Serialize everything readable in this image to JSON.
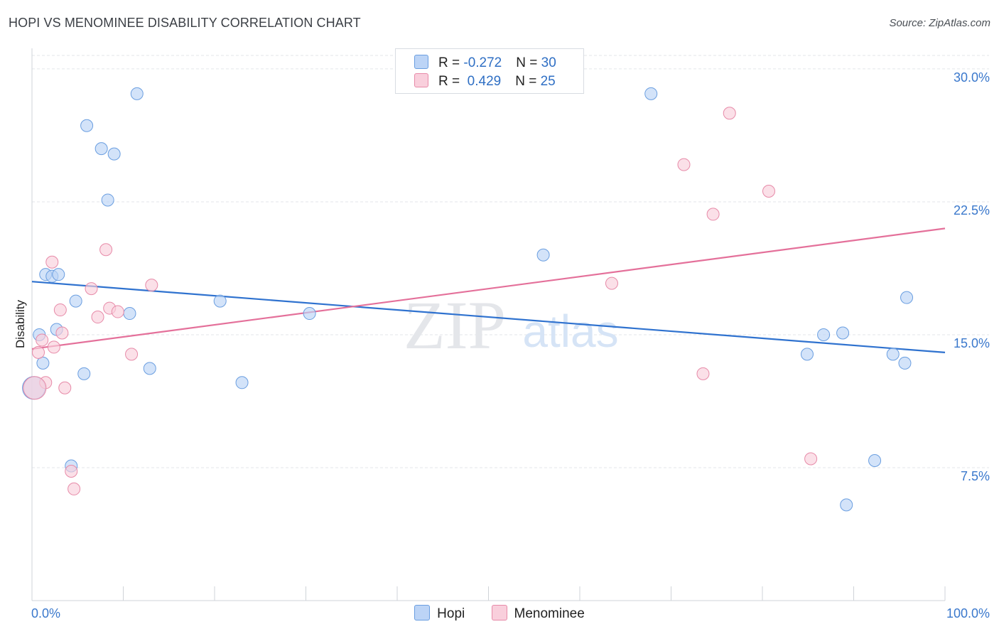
{
  "header": {
    "title": "HOPI VS MENOMINEE DISABILITY CORRELATION CHART",
    "source": "Source: ZipAtlas.com"
  },
  "legend": {
    "rows": [
      {
        "r_label": "R = ",
        "r_value": "-0.272",
        "n_label": "N = ",
        "n_value": "30"
      },
      {
        "r_label": "R = ",
        "r_value": " 0.429",
        "n_label": "N = ",
        "n_value": "25"
      }
    ],
    "bottom": [
      "Hopi",
      "Menominee"
    ]
  },
  "colors": {
    "hopi_fill": "#bcd4f6",
    "hopi_stroke": "#6a9ee0",
    "hopi_line": "#2f72cf",
    "menominee_fill": "#f9cfdc",
    "menominee_stroke": "#e78aa8",
    "menominee_line": "#e4709a",
    "tick_text": "#3a78cc",
    "grid": "#e3e6ea"
  },
  "chart_data": {
    "type": "scatter",
    "title": "HOPI VS MENOMINEE DISABILITY CORRELATION CHART",
    "xlabel": "",
    "ylabel": "Disability",
    "xlim": [
      0,
      100
    ],
    "ylim": [
      0,
      31
    ],
    "x_tick_labels": [
      "0.0%",
      "100.0%"
    ],
    "y_ticks": [
      7.5,
      15.0,
      22.5,
      30.0
    ],
    "y_tick_labels": [
      "7.5%",
      "15.0%",
      "22.5%",
      "30.0%"
    ],
    "grid": true,
    "legend_position": "top-center",
    "watermark": "ZIPatlas",
    "series": [
      {
        "name": "Hopi",
        "color": "#2f72cf",
        "points": [
          [
            11.5,
            28.6
          ],
          [
            6.0,
            26.8
          ],
          [
            7.6,
            25.5
          ],
          [
            9.0,
            25.2
          ],
          [
            8.3,
            22.6
          ],
          [
            1.5,
            18.4
          ],
          [
            2.2,
            18.3
          ],
          [
            2.9,
            18.4
          ],
          [
            4.8,
            16.9
          ],
          [
            10.7,
            16.2
          ],
          [
            2.7,
            15.3
          ],
          [
            0.8,
            15.0
          ],
          [
            1.2,
            13.4
          ],
          [
            5.7,
            12.8
          ],
          [
            12.9,
            13.1
          ],
          [
            4.3,
            7.6
          ],
          [
            20.6,
            16.9
          ],
          [
            23.0,
            12.3
          ],
          [
            30.4,
            16.2
          ],
          [
            56.0,
            19.5
          ],
          [
            67.8,
            28.6
          ],
          [
            84.9,
            13.9
          ],
          [
            86.7,
            15.0
          ],
          [
            88.8,
            15.1
          ],
          [
            89.2,
            5.4
          ],
          [
            92.3,
            7.9
          ],
          [
            94.3,
            13.9
          ],
          [
            95.6,
            13.4
          ],
          [
            95.8,
            17.1
          ],
          [
            0.2,
            12.0
          ]
        ],
        "trend": {
          "x": [
            0,
            100
          ],
          "y": [
            18.0,
            14.0
          ]
        }
      },
      {
        "name": "Menominee",
        "color": "#e4709a",
        "points": [
          [
            0.7,
            14.0
          ],
          [
            1.1,
            14.7
          ],
          [
            1.5,
            12.3
          ],
          [
            2.2,
            19.1
          ],
          [
            2.4,
            14.3
          ],
          [
            3.1,
            16.4
          ],
          [
            3.3,
            15.1
          ],
          [
            3.6,
            12.0
          ],
          [
            4.3,
            7.3
          ],
          [
            4.6,
            6.3
          ],
          [
            6.5,
            17.6
          ],
          [
            7.2,
            16.0
          ],
          [
            8.1,
            19.8
          ],
          [
            8.5,
            16.5
          ],
          [
            9.4,
            16.3
          ],
          [
            10.9,
            13.9
          ],
          [
            13.1,
            17.8
          ],
          [
            0.3,
            12.0
          ],
          [
            63.5,
            17.9
          ],
          [
            71.4,
            24.6
          ],
          [
            73.5,
            12.8
          ],
          [
            74.6,
            21.8
          ],
          [
            76.4,
            27.5
          ],
          [
            80.7,
            23.1
          ],
          [
            85.3,
            8.0
          ]
        ],
        "trend": {
          "x": [
            0,
            100
          ],
          "y": [
            14.2,
            21.0
          ]
        }
      }
    ]
  }
}
